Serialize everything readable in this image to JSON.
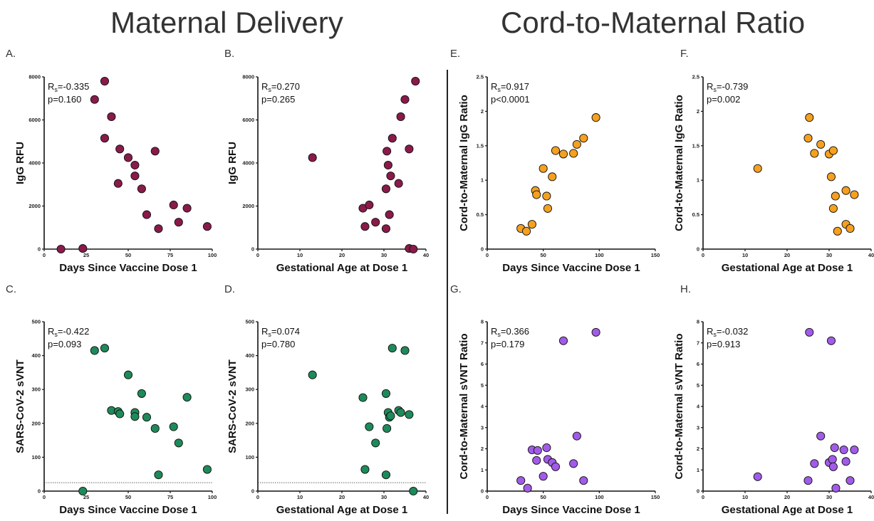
{
  "titles": {
    "left": "Maternal Delivery",
    "right": "Cord-to-Maternal Ratio"
  },
  "colors": {
    "maroon": "#8a1a4a",
    "green": "#1e8a5a",
    "orange": "#f5a01e",
    "purple": "#a25be8"
  },
  "chart_data": [
    {
      "id": "A",
      "type": "scatter",
      "letter": "A.",
      "color": "#8a1a4a",
      "xlabel": "Days Since Vaccine Dose 1",
      "ylabel": "IgG RFU",
      "xlim": [
        0,
        100
      ],
      "ylim": [
        0,
        8000
      ],
      "xticks": [
        0,
        25,
        50,
        75,
        100
      ],
      "yticks": [
        0,
        2000,
        4000,
        6000,
        8000
      ],
      "refline": 0,
      "stat_prefix": "R",
      "stat_sub": "s",
      "stat_r": "=-0.335",
      "stat_p": "p=0.160",
      "points": [
        [
          10,
          0
        ],
        [
          23,
          30
        ],
        [
          30,
          6950
        ],
        [
          36,
          7800
        ],
        [
          36,
          5150
        ],
        [
          40,
          6150
        ],
        [
          44,
          3050
        ],
        [
          45,
          4650
        ],
        [
          50,
          4250
        ],
        [
          54,
          3900
        ],
        [
          54,
          3400
        ],
        [
          58,
          2800
        ],
        [
          61,
          1600
        ],
        [
          66,
          4550
        ],
        [
          68,
          950
        ],
        [
          77,
          2050
        ],
        [
          80,
          1250
        ],
        [
          85,
          1900
        ],
        [
          97,
          1050
        ]
      ]
    },
    {
      "id": "B",
      "type": "scatter",
      "letter": "B.",
      "color": "#8a1a4a",
      "xlabel": "Gestational Age at Dose 1",
      "ylabel": "IgG RFU",
      "xlim": [
        0,
        40
      ],
      "ylim": [
        0,
        8000
      ],
      "xticks": [
        0,
        10,
        20,
        30,
        40
      ],
      "yticks": [
        0,
        2000,
        4000,
        6000,
        8000
      ],
      "refline": 0,
      "stat_prefix": "R",
      "stat_sub": "s",
      "stat_r": "=0.270",
      "stat_p": "p=0.265",
      "points": [
        [
          13,
          4250
        ],
        [
          25,
          1900
        ],
        [
          25.5,
          1050
        ],
        [
          26.5,
          2050
        ],
        [
          28,
          1250
        ],
        [
          30.5,
          950
        ],
        [
          30.5,
          2800
        ],
        [
          30.7,
          4550
        ],
        [
          31,
          3900
        ],
        [
          31.3,
          1600
        ],
        [
          31.6,
          3400
        ],
        [
          32,
          5150
        ],
        [
          33.5,
          3050
        ],
        [
          34,
          6150
        ],
        [
          35,
          6950
        ],
        [
          36,
          4650
        ],
        [
          36,
          30
        ],
        [
          37,
          0
        ],
        [
          37.5,
          7800
        ]
      ]
    },
    {
      "id": "C",
      "type": "scatter",
      "letter": "C.",
      "color": "#1e8a5a",
      "xlabel": "Days Since Vaccine Dose 1",
      "ylabel": "SARS-CoV-2 sVNT",
      "xlim": [
        0,
        100
      ],
      "ylim": [
        0,
        500
      ],
      "xticks": [
        0,
        25,
        50,
        75,
        100
      ],
      "yticks": [
        0,
        100,
        200,
        300,
        400,
        500
      ],
      "refline": 25,
      "stat_prefix": "R",
      "stat_sub": "s",
      "stat_r": "=-0.422",
      "stat_p": "p=0.093",
      "points": [
        [
          23,
          0
        ],
        [
          30,
          415
        ],
        [
          36,
          422
        ],
        [
          40,
          238
        ],
        [
          44,
          235
        ],
        [
          45,
          228
        ],
        [
          50,
          343
        ],
        [
          54,
          232
        ],
        [
          54,
          220
        ],
        [
          58,
          288
        ],
        [
          61,
          218
        ],
        [
          66,
          185
        ],
        [
          68,
          48
        ],
        [
          77,
          190
        ],
        [
          80,
          142
        ],
        [
          85,
          277
        ],
        [
          97,
          64
        ]
      ]
    },
    {
      "id": "D",
      "type": "scatter",
      "letter": "D.",
      "color": "#1e8a5a",
      "xlabel": "Gestational Age at Dose 1",
      "ylabel": "SARS-CoV-2 sVNT",
      "xlim": [
        0,
        40
      ],
      "ylim": [
        0,
        500
      ],
      "xticks": [
        0,
        10,
        20,
        30,
        40
      ],
      "yticks": [
        0,
        100,
        200,
        300,
        400,
        500
      ],
      "refline": 25,
      "stat_prefix": "R",
      "stat_sub": "s",
      "stat_r": "=0.074",
      "stat_p": "p=0.780",
      "points": [
        [
          13,
          343
        ],
        [
          25,
          276
        ],
        [
          25.5,
          64
        ],
        [
          26.5,
          190
        ],
        [
          28,
          142
        ],
        [
          30.5,
          288
        ],
        [
          30.5,
          48
        ],
        [
          30.7,
          185
        ],
        [
          31,
          232
        ],
        [
          31.3,
          218
        ],
        [
          31.6,
          222
        ],
        [
          32,
          422
        ],
        [
          33.5,
          238
        ],
        [
          34,
          232
        ],
        [
          35,
          415
        ],
        [
          36,
          226
        ],
        [
          37,
          0
        ]
      ]
    },
    {
      "id": "E",
      "type": "scatter",
      "letter": "E.",
      "color": "#f5a01e",
      "xlabel": "Days Since Vaccine Dose 1",
      "ylabel": "Cord-to-Maternal IgG Ratio",
      "xlim": [
        0,
        150
      ],
      "ylim": [
        0,
        2.5
      ],
      "xticks": [
        0,
        50,
        100,
        150
      ],
      "yticks": [
        0,
        0.5,
        1.0,
        1.5,
        2.0,
        2.5
      ],
      "refline": null,
      "stat_prefix": "R",
      "stat_sub": "s",
      "stat_r": "=0.917",
      "stat_p": "p<0.0001",
      "points": [
        [
          30,
          0.3
        ],
        [
          35,
          0.26
        ],
        [
          40,
          0.36
        ],
        [
          43,
          0.85
        ],
        [
          44,
          0.79
        ],
        [
          50,
          1.17
        ],
        [
          53,
          0.77
        ],
        [
          54,
          0.59
        ],
        [
          58,
          1.05
        ],
        [
          61,
          1.43
        ],
        [
          68,
          1.38
        ],
        [
          77,
          1.39
        ],
        [
          80,
          1.52
        ],
        [
          86,
          1.61
        ],
        [
          97,
          1.91
        ]
      ]
    },
    {
      "id": "F",
      "type": "scatter",
      "letter": "F.",
      "color": "#f5a01e",
      "xlabel": "Gestational Age at Dose 1",
      "ylabel": "Cord-to-Maternal IgG Ratio",
      "xlim": [
        0,
        40
      ],
      "ylim": [
        0,
        2.5
      ],
      "xticks": [
        0,
        10,
        20,
        30,
        40
      ],
      "yticks": [
        0,
        0.5,
        1.0,
        1.5,
        2.0,
        2.5
      ],
      "refline": null,
      "stat_prefix": "R",
      "stat_sub": "s",
      "stat_r": "=-0.739",
      "stat_p": "p=0.002",
      "points": [
        [
          13,
          1.17
        ],
        [
          25,
          1.61
        ],
        [
          25.3,
          1.91
        ],
        [
          26.5,
          1.39
        ],
        [
          28,
          1.52
        ],
        [
          30,
          1.38
        ],
        [
          30.5,
          1.05
        ],
        [
          31,
          1.43
        ],
        [
          31,
          0.59
        ],
        [
          31.5,
          0.77
        ],
        [
          32,
          0.26
        ],
        [
          34,
          0.85
        ],
        [
          34,
          0.36
        ],
        [
          35,
          0.3
        ],
        [
          36,
          0.79
        ]
      ]
    },
    {
      "id": "G",
      "type": "scatter",
      "letter": "G.",
      "color": "#a25be8",
      "xlabel": "Days Since Vaccine Dose 1",
      "ylabel": "Cord-to-Maternal sVNT Ratio",
      "xlim": [
        0,
        150
      ],
      "ylim": [
        0,
        8
      ],
      "xticks": [
        0,
        50,
        100,
        150
      ],
      "yticks": [
        0,
        1,
        2,
        3,
        4,
        5,
        6,
        7,
        8
      ],
      "refline": null,
      "stat_prefix": "R",
      "stat_sub": "s",
      "stat_r": "=0.366",
      "stat_p": "p=0.179",
      "points": [
        [
          30,
          0.5
        ],
        [
          36,
          0.14
        ],
        [
          40,
          1.95
        ],
        [
          44,
          1.45
        ],
        [
          45,
          1.92
        ],
        [
          50,
          0.7
        ],
        [
          53,
          2.05
        ],
        [
          54,
          1.5
        ],
        [
          58,
          1.35
        ],
        [
          61,
          1.15
        ],
        [
          68,
          7.1
        ],
        [
          77,
          1.3
        ],
        [
          80,
          2.6
        ],
        [
          86,
          0.5
        ],
        [
          97,
          7.5
        ]
      ]
    },
    {
      "id": "H",
      "type": "scatter",
      "letter": "H.",
      "color": "#a25be8",
      "xlabel": "Gestational Age at Dose 1",
      "ylabel": "Cord-to-Maternal sVNT Ratio",
      "xlim": [
        0,
        40
      ],
      "ylim": [
        0,
        8
      ],
      "xticks": [
        0,
        10,
        20,
        30,
        40
      ],
      "yticks": [
        0,
        1,
        2,
        3,
        4,
        5,
        6,
        7,
        8
      ],
      "refline": null,
      "stat_prefix": "R",
      "stat_sub": "s",
      "stat_r": "=-0.032",
      "stat_p": "p=0.913",
      "points": [
        [
          13,
          0.68
        ],
        [
          25,
          0.5
        ],
        [
          25.3,
          7.5
        ],
        [
          26.5,
          1.3
        ],
        [
          28,
          2.6
        ],
        [
          30,
          1.35
        ],
        [
          30.5,
          7.1
        ],
        [
          30.8,
          1.5
        ],
        [
          31,
          1.15
        ],
        [
          31.3,
          2.05
        ],
        [
          31.6,
          0.14
        ],
        [
          33.5,
          1.95
        ],
        [
          34,
          1.4
        ],
        [
          35,
          0.5
        ],
        [
          36,
          1.95
        ]
      ]
    }
  ]
}
